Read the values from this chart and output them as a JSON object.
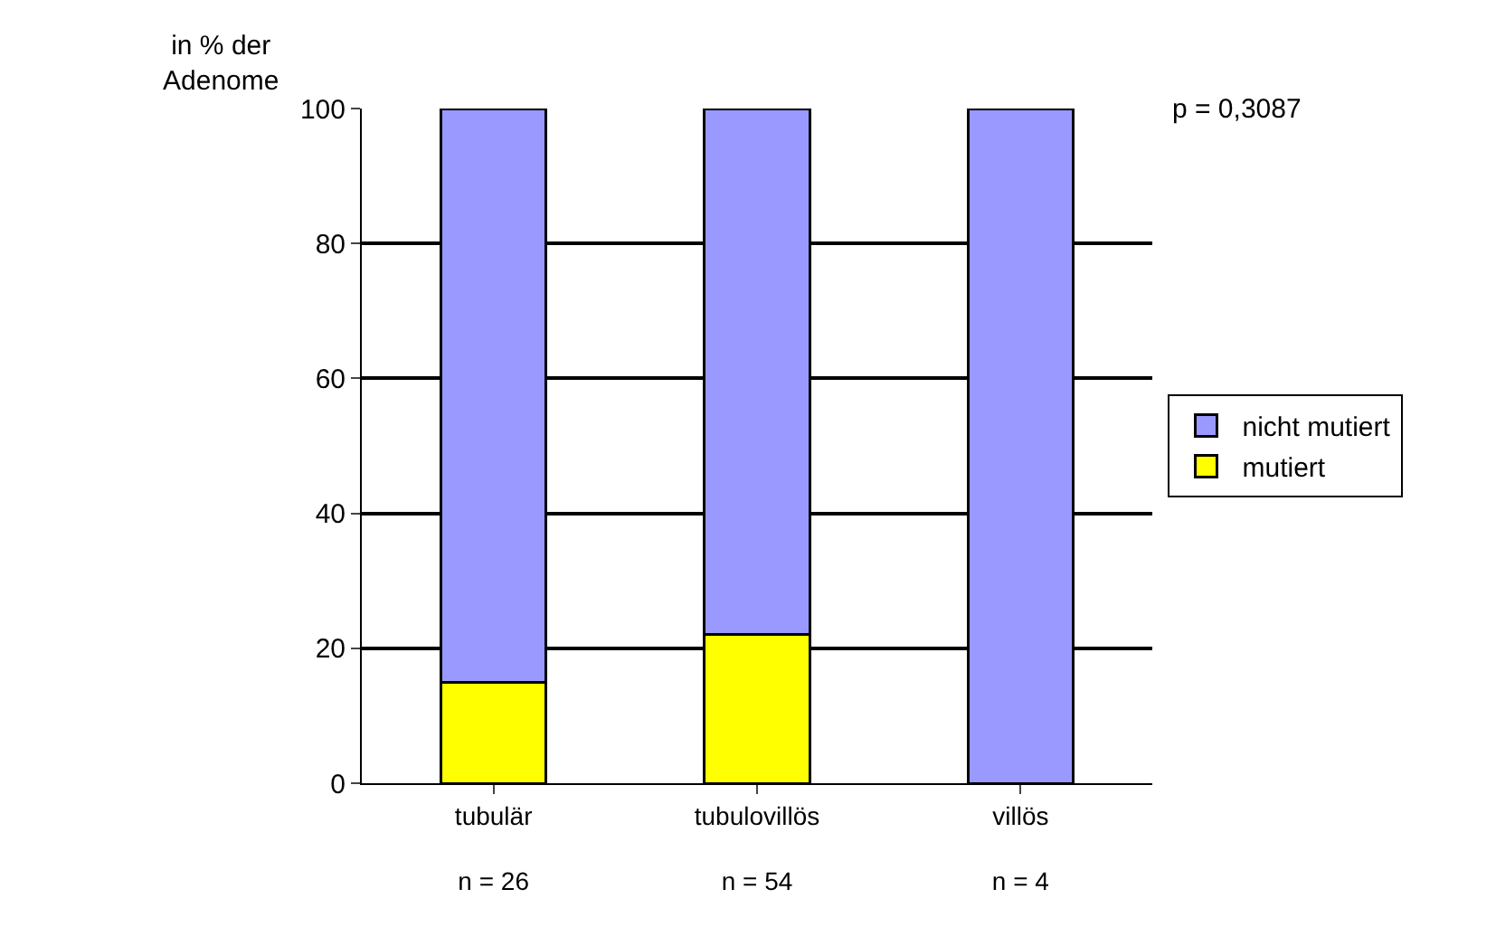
{
  "chart_data": {
    "type": "bar",
    "stacked": true,
    "ylabel": "in % der\nAdenome",
    "categories": [
      "tubulär\n\nn = 26",
      "tubulovillös\n\nn = 54",
      "villös\n\nn = 4"
    ],
    "series": [
      {
        "name": "mutiert",
        "color": "#ffff00",
        "values": [
          15,
          22,
          0
        ]
      },
      {
        "name": "nicht mutiert",
        "color": "#9999ff",
        "values": [
          85,
          78,
          100
        ]
      }
    ],
    "ylim": [
      0,
      100
    ],
    "yticks": [
      0,
      20,
      40,
      60,
      80,
      100
    ],
    "grid": "y",
    "legend": "right",
    "annotations": [
      "p = 0,3087"
    ]
  }
}
